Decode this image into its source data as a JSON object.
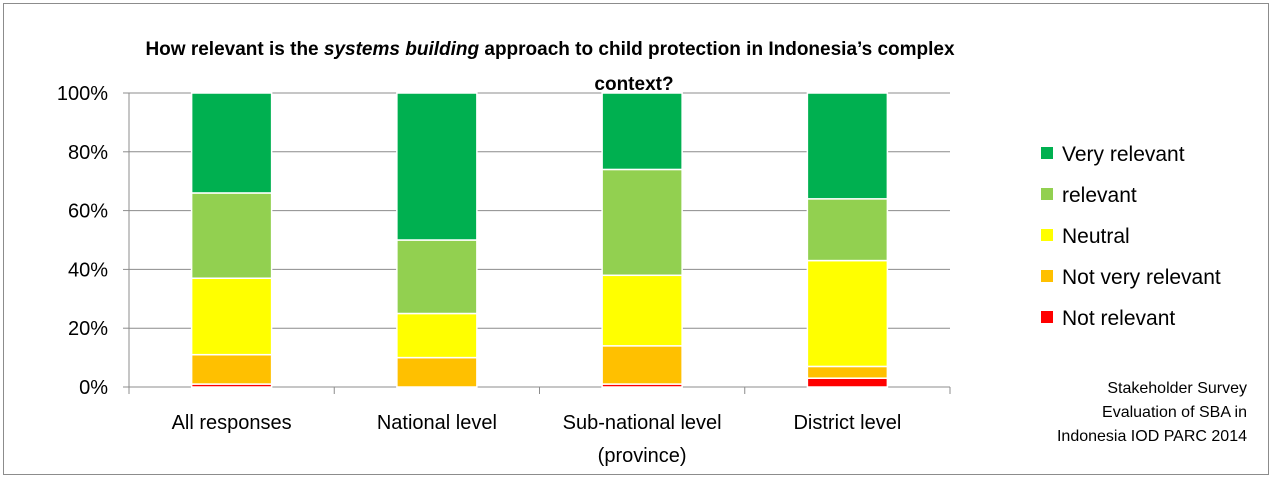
{
  "chart_data": {
    "type": "bar",
    "stacked": true,
    "percent": true,
    "title_parts": [
      {
        "text": "How relevant is the ",
        "italic": false
      },
      {
        "text": "systems building",
        "italic": true
      },
      {
        "text": " approach to child protection in Indonesia’s complex",
        "italic": false
      }
    ],
    "title_line2": "context?",
    "categories": [
      [
        "All responses"
      ],
      [
        "National level"
      ],
      [
        "Sub-national level",
        "(province)"
      ],
      [
        "District level"
      ]
    ],
    "y_ticks": [
      "0%",
      "20%",
      "40%",
      "60%",
      "80%",
      "100%"
    ],
    "ylim": [
      0,
      100
    ],
    "grid": true,
    "legend_position": "right",
    "series": [
      {
        "name": "Not relevant",
        "color": "#ff0000",
        "values": [
          1,
          0,
          1,
          3
        ]
      },
      {
        "name": "Not very relevant",
        "color": "#ffc000",
        "values": [
          10,
          10,
          13,
          4
        ]
      },
      {
        "name": "Neutral",
        "color": "#ffff00",
        "values": [
          26,
          15,
          24,
          36
        ]
      },
      {
        "name": "relevant",
        "color": "#92d050",
        "values": [
          29,
          25,
          36,
          21
        ]
      },
      {
        "name": "Very relevant",
        "color": "#00b050",
        "values": [
          34,
          50,
          26,
          36
        ]
      }
    ],
    "legend_order": [
      "Very relevant",
      "relevant",
      "Neutral",
      "Not very relevant",
      "Not relevant"
    ],
    "note": [
      "Stakeholder Survey",
      "Evaluation of SBA in",
      "Indonesia IOD PARC 2014"
    ]
  }
}
